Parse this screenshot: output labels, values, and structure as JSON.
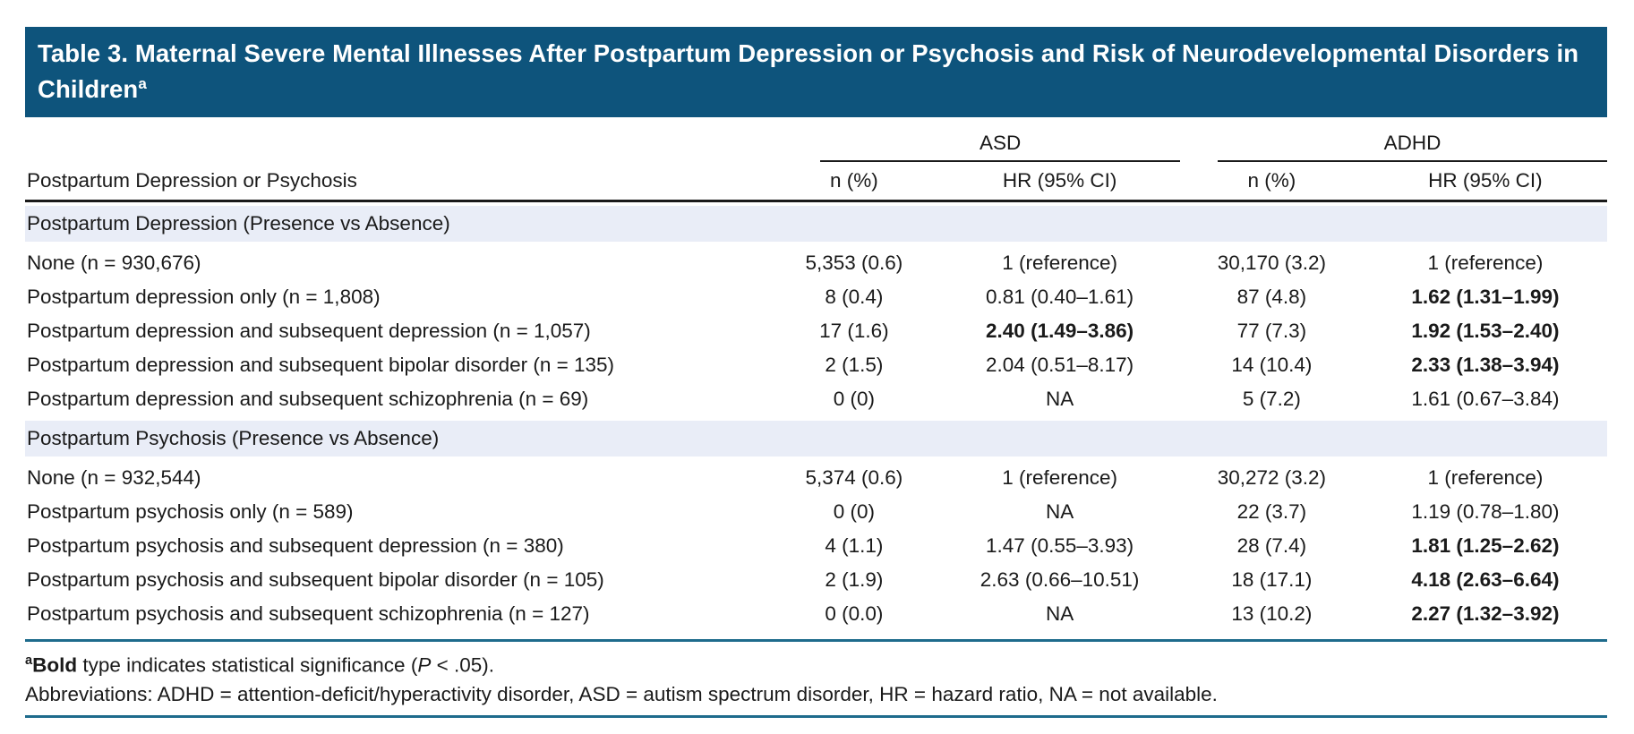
{
  "title": {
    "text": "Table 3. Maternal Severe Mental Illnesses After Postpartum Depression or Psychosis and Risk of Neurodevelopmental Disorders in Children",
    "superscript": "a"
  },
  "colors": {
    "title_bar_blue": "#0e547c",
    "section_band_blue": "#e9edf7",
    "rule_teal": "#1e6b8c",
    "rule_black": "#1a1a1a"
  },
  "chart_data": {
    "type": "table",
    "title": "Table 3. Maternal Severe Mental Illnesses After Postpartum Depression or Psychosis and Risk of Neurodevelopmental Disorders in Children",
    "stub_header": "Postpartum Depression or Psychosis",
    "groups": [
      {
        "label": "ASD"
      },
      {
        "label": "ADHD"
      }
    ],
    "sub_headers": [
      "n (%)",
      "HR (95% CI)",
      "n (%)",
      "HR (95% CI)"
    ],
    "sections": [
      {
        "header": "Postpartum Depression (Presence vs Absence)",
        "rows": [
          {
            "label": "None (n = 930,676)",
            "asd_n": "5,353 (0.6)",
            "asd_hr": "1 (reference)",
            "asd_hr_bold": false,
            "adhd_n": "30,170 (3.2)",
            "adhd_hr": "1 (reference)",
            "adhd_hr_bold": false
          },
          {
            "label": "Postpartum depression only (n = 1,808)",
            "asd_n": "8 (0.4)",
            "asd_hr": "0.81 (0.40–1.61)",
            "asd_hr_bold": false,
            "adhd_n": "87 (4.8)",
            "adhd_hr": "1.62 (1.31–1.99)",
            "adhd_hr_bold": true
          },
          {
            "label": "Postpartum depression and subsequent depression (n = 1,057)",
            "asd_n": "17 (1.6)",
            "asd_hr": "2.40 (1.49–3.86)",
            "asd_hr_bold": true,
            "adhd_n": "77 (7.3)",
            "adhd_hr": "1.92 (1.53–2.40)",
            "adhd_hr_bold": true
          },
          {
            "label": "Postpartum depression and subsequent bipolar disorder (n = 135)",
            "asd_n": "2 (1.5)",
            "asd_hr": "2.04 (0.51–8.17)",
            "asd_hr_bold": false,
            "adhd_n": "14 (10.4)",
            "adhd_hr": "2.33 (1.38–3.94)",
            "adhd_hr_bold": true
          },
          {
            "label": "Postpartum depression and subsequent schizophrenia (n = 69)",
            "asd_n": "0 (0)",
            "asd_hr": "NA",
            "asd_hr_bold": false,
            "adhd_n": "5 (7.2)",
            "adhd_hr": "1.61 (0.67–3.84)",
            "adhd_hr_bold": false
          }
        ]
      },
      {
        "header": "Postpartum Psychosis (Presence vs Absence)",
        "rows": [
          {
            "label": "None (n = 932,544)",
            "asd_n": "5,374 (0.6)",
            "asd_hr": "1 (reference)",
            "asd_hr_bold": false,
            "adhd_n": "30,272 (3.2)",
            "adhd_hr": "1 (reference)",
            "adhd_hr_bold": false
          },
          {
            "label": "Postpartum psychosis only (n = 589)",
            "asd_n": "0 (0)",
            "asd_hr": "NA",
            "asd_hr_bold": false,
            "adhd_n": "22 (3.7)",
            "adhd_hr": "1.19 (0.78–1.80)",
            "adhd_hr_bold": false
          },
          {
            "label": "Postpartum psychosis and subsequent depression (n = 380)",
            "asd_n": "4 (1.1)",
            "asd_hr": "1.47 (0.55–3.93)",
            "asd_hr_bold": false,
            "adhd_n": "28 (7.4)",
            "adhd_hr": "1.81 (1.25–2.62)",
            "adhd_hr_bold": true
          },
          {
            "label": "Postpartum psychosis and subsequent bipolar disorder (n = 105)",
            "asd_n": "2 (1.9)",
            "asd_hr": "2.63 (0.66–10.51)",
            "asd_hr_bold": false,
            "adhd_n": "18 (17.1)",
            "adhd_hr": "4.18 (2.63–6.64)",
            "adhd_hr_bold": true
          },
          {
            "label": "Postpartum psychosis and subsequent schizophrenia (n = 127)",
            "asd_n": "0 (0.0)",
            "asd_hr": "NA",
            "asd_hr_bold": false,
            "adhd_n": "13 (10.2)",
            "adhd_hr": "2.27 (1.32–3.92)",
            "adhd_hr_bold": true
          }
        ]
      }
    ]
  },
  "footnotes": {
    "note_a": {
      "marker": "a",
      "bold_word": "Bold",
      "text1": " type indicates statistical significance (",
      "p_italic": "P",
      "text2": " < .05)."
    },
    "abbreviations": "Abbreviations: ADHD = attention-deficit/hyperactivity disorder, ASD = autism spectrum disorder, HR = hazard ratio, NA = not available."
  }
}
